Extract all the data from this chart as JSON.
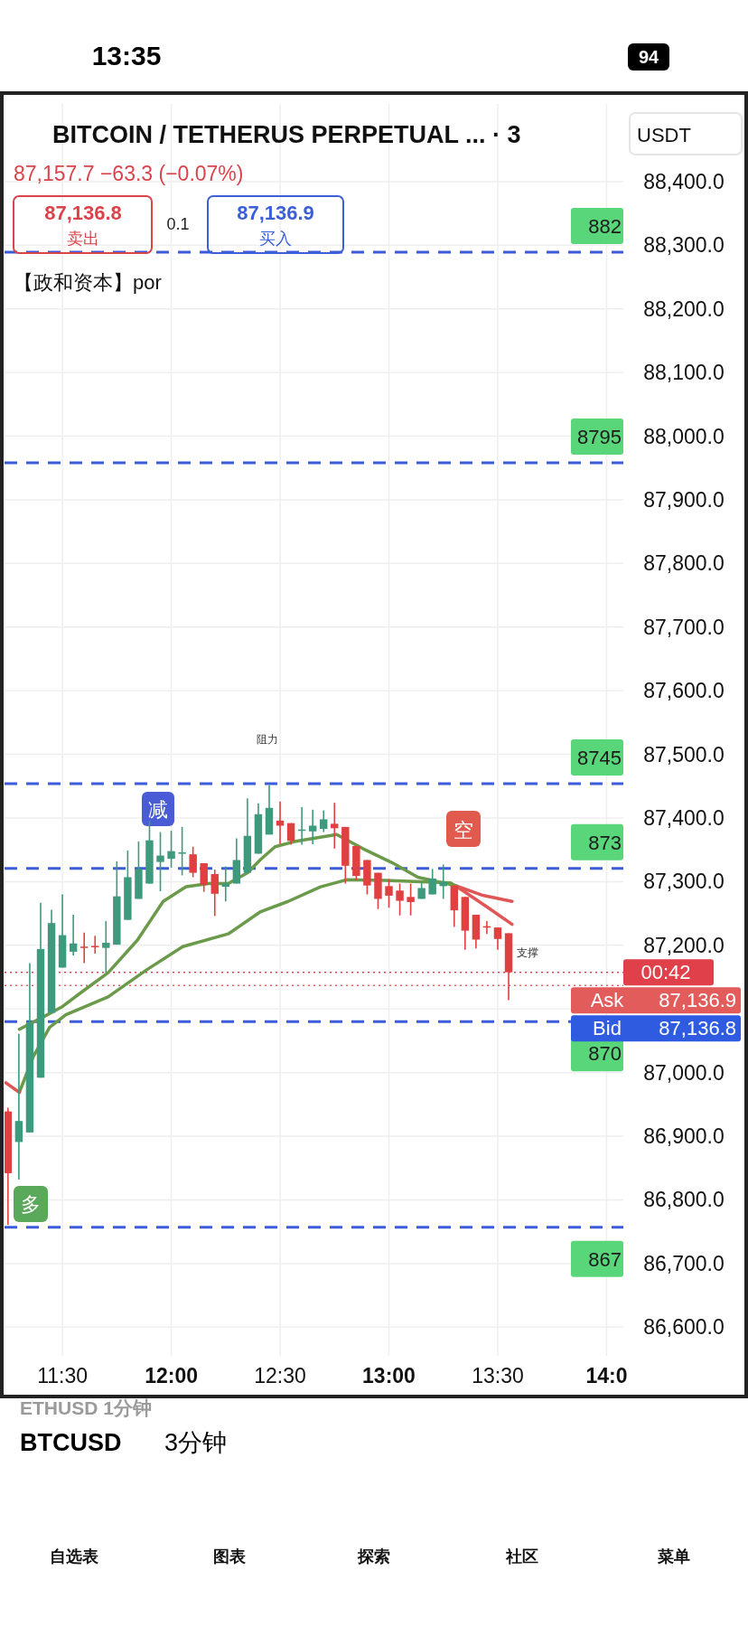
{
  "chart_data": {
    "type": "candlestick",
    "title": "BITCOIN / TETHERUS PERPETUAL ... · 3",
    "subtitle": "87,157.7  −63.3 (−0.07%)",
    "x": [
      11.25,
      11.3,
      11.35,
      11.4,
      11.45,
      11.5,
      11.55,
      11.6,
      11.65,
      11.7,
      11.75,
      11.8,
      11.85,
      11.9,
      11.95,
      12.0,
      12.05,
      12.1,
      12.15,
      12.2,
      12.25,
      12.3,
      12.35,
      12.4,
      12.45,
      12.5,
      12.55,
      12.6,
      12.65,
      12.7,
      12.75,
      12.8,
      12.85,
      12.9,
      12.95,
      13.0,
      13.05,
      13.1,
      13.15,
      13.2,
      13.25,
      13.3,
      13.35,
      13.4,
      13.45,
      13.5,
      13.55
    ],
    "ohlc": [
      [
        86939,
        86945,
        86761,
        86842
      ],
      [
        86891,
        87061,
        86832,
        86924
      ],
      [
        86906,
        87172,
        86906,
        87078
      ],
      [
        86992,
        87267,
        86992,
        87194
      ],
      [
        87094,
        87256,
        87094,
        87235
      ],
      [
        87165,
        87280,
        87165,
        87216
      ],
      [
        87190,
        87248,
        87184,
        87203
      ],
      [
        87198,
        87220,
        87172,
        87197
      ],
      [
        87199,
        87215,
        87187,
        87198
      ],
      [
        87196,
        87238,
        87157,
        87204
      ],
      [
        87201,
        87332,
        87201,
        87277
      ],
      [
        87240,
        87349,
        87240,
        87307
      ],
      [
        87273,
        87363,
        87273,
        87320
      ],
      [
        87297,
        87396,
        87297,
        87365
      ],
      [
        87331,
        87378,
        87285,
        87341
      ],
      [
        87336,
        87380,
        87322,
        87348
      ],
      [
        87344,
        87386,
        87310,
        87346
      ],
      [
        87343,
        87355,
        87307,
        87314
      ],
      [
        87329,
        87329,
        87284,
        87295
      ],
      [
        87312,
        87319,
        87246,
        87281
      ],
      [
        87292,
        87324,
        87269,
        87297
      ],
      [
        87297,
        87368,
        87297,
        87334
      ],
      [
        87314,
        87431,
        87314,
        87372
      ],
      [
        87344,
        87423,
        87344,
        87406
      ],
      [
        87374,
        87452,
        87374,
        87416
      ],
      [
        87396,
        87426,
        87359,
        87388
      ],
      [
        87392,
        87392,
        87358,
        87364
      ],
      [
        87380,
        87417,
        87358,
        87382
      ],
      [
        87379,
        87413,
        87359,
        87388
      ],
      [
        87383,
        87412,
        87378,
        87398
      ],
      [
        87391,
        87424,
        87352,
        87384
      ],
      [
        87386,
        87386,
        87297,
        87325
      ],
      [
        87356,
        87356,
        87302,
        87309
      ],
      [
        87334,
        87334,
        87280,
        87294
      ],
      [
        87314,
        87314,
        87257,
        87273
      ],
      [
        87293,
        87304,
        87259,
        87278
      ],
      [
        87286,
        87297,
        87247,
        87270
      ],
      [
        87276,
        87297,
        87247,
        87268
      ],
      [
        87273,
        87299,
        87273,
        87290
      ],
      [
        87280,
        87320,
        87280,
        87305
      ],
      [
        87293,
        87327,
        87273,
        87300
      ],
      [
        87294,
        87294,
        87229,
        87255
      ],
      [
        87276,
        87276,
        87193,
        87223
      ],
      [
        87248,
        87248,
        87195,
        87209
      ],
      [
        87230,
        87238,
        87218,
        87228
      ],
      [
        87228,
        87228,
        87193,
        87210
      ],
      [
        87219,
        87219,
        87114,
        87157.7
      ]
    ],
    "series": [
      {
        "type": "line",
        "color": "#6b9a4b",
        "x": [
          11.302,
          11.404,
          11.501,
          11.59,
          11.71,
          11.844,
          11.963,
          12.068,
          12.172,
          12.262,
          12.351,
          12.411,
          12.477,
          12.566,
          12.76,
          12.88,
          13.014,
          13.133,
          13.253,
          13.313
        ],
        "values": [
          87068,
          87086,
          87104,
          87127,
          87157,
          87208,
          87269,
          87292,
          87297,
          87297,
          87314,
          87335,
          87355,
          87363,
          87374,
          87352,
          87330,
          87307,
          87298,
          87293
        ]
      },
      {
        "type": "line",
        "color": "#e05555",
        "x": [
          13.313,
          13.426,
          13.566
        ],
        "values": [
          87293,
          87279,
          87269
        ]
      },
      {
        "type": "line",
        "color": "#6b9a4b",
        "x": [
          11.302,
          11.366,
          11.441,
          11.516,
          11.71,
          11.889,
          12.053,
          12.262,
          12.411,
          12.537,
          12.686,
          12.805,
          12.984,
          13.283,
          13.313
        ],
        "values": [
          86969,
          87025,
          87071,
          87091,
          87119,
          87162,
          87198,
          87218,
          87253,
          87269,
          87292,
          87303,
          87302,
          87298,
          87292
        ]
      },
      {
        "type": "line",
        "color": "#e05555",
        "x": [
          13.313,
          13.456,
          13.566
        ],
        "values": [
          87292,
          87259,
          87233
        ]
      },
      {
        "type": "line",
        "color": "#e05555",
        "x": [
          11.24,
          11.302
        ],
        "values": [
          86984,
          86969
        ]
      }
    ],
    "xlim": [
      11.234,
      14.077
    ],
    "xticks": [
      {
        "value": 11.5,
        "label": "11:30"
      },
      {
        "value": 12,
        "label": "12:00"
      },
      {
        "value": 12.5,
        "label": "12:30"
      },
      {
        "value": 13,
        "label": "13:00"
      },
      {
        "value": 13.5,
        "label": "13:30"
      },
      {
        "value": 14,
        "label": "14:0"
      }
    ],
    "ylim": [
      86555,
      88522
    ],
    "yticks": [
      {
        "value": 86600,
        "label": "86,600.0"
      },
      {
        "value": 86700,
        "label": "86,700.0"
      },
      {
        "value": 86800,
        "label": "86,800.0"
      },
      {
        "value": 86900,
        "label": "86,900.0"
      },
      {
        "value": 87000,
        "label": "87,000.0"
      },
      {
        "value": 87100,
        "label": null
      },
      {
        "value": 87200,
        "label": "87,200.0"
      },
      {
        "value": 87300,
        "label": "87,300.0"
      },
      {
        "value": 87400,
        "label": "87,400.0"
      },
      {
        "value": 87500,
        "label": "87,500.0"
      },
      {
        "value": 87600,
        "label": "87,600.0"
      },
      {
        "value": 87700,
        "label": "87,700.0"
      },
      {
        "value": 87800,
        "label": "87,800.0"
      },
      {
        "value": 87900,
        "label": "87,900.0"
      },
      {
        "value": 88000,
        "label": "88,000.0"
      },
      {
        "value": 88100,
        "label": "88,100.0"
      },
      {
        "value": 88200,
        "label": "88,200.0"
      },
      {
        "value": 88300,
        "label": "88,300.0"
      },
      {
        "value": 88400,
        "label": "88,400.0"
      }
    ],
    "grid": true,
    "ref_lines": [
      {
        "axis": "y",
        "value": 88289,
        "color": "#3b5bdb",
        "line_style": "dashed"
      },
      {
        "axis": "y",
        "value": 87958,
        "color": "#3b5bdb",
        "line_style": "dashed"
      },
      {
        "axis": "y",
        "value": 87454,
        "color": "#3b5bdb",
        "line_style": "dashed"
      },
      {
        "axis": "y",
        "value": 87321,
        "color": "#3b5bdb",
        "line_style": "dashed"
      },
      {
        "axis": "y",
        "value": 87080,
        "color": "#3b5bdb",
        "line_style": "dashed"
      },
      {
        "axis": "y",
        "value": 86757,
        "color": "#3b5bdb",
        "line_style": "dashed"
      },
      {
        "axis": "y",
        "value": 87157.7,
        "color": "#e0404a",
        "line_style": "dotted"
      },
      {
        "axis": "y",
        "value": 87136.9,
        "label": "Ask",
        "color": "#e25c5c",
        "line_style": "dotted"
      }
    ],
    "annotations": [
      "13:35",
      "94",
      "87,136.8",
      "卖出",
      "0.1",
      "87,136.9",
      "买入",
      "【政和资本】por",
      "USDT",
      "ETHUSD  1分钟",
      "BTCUSD",
      "3分钟",
      "自选表",
      "图表",
      "探索",
      "社区",
      "菜单",
      "减",
      "阻力",
      "空",
      "支撑",
      "多",
      "882",
      "8795",
      "8745",
      "873",
      "870",
      "867",
      "87,136.9",
      "Bid",
      "87,136.8",
      "00:42"
    ]
  }
}
